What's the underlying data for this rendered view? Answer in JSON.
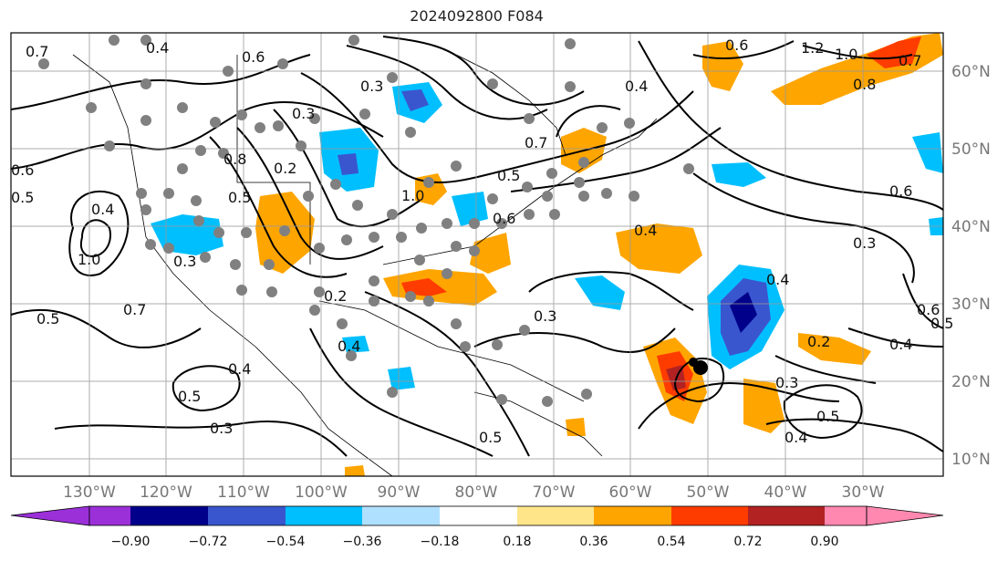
{
  "title": "2024092800 F084",
  "longitude_labels": [
    "130°W",
    "120°W",
    "110°W",
    "100°W",
    "90°W",
    "80°W",
    "70°W",
    "60°W",
    "50°W",
    "40°W",
    "30°W"
  ],
  "latitude_labels": [
    "60°N",
    "50°N",
    "40°N",
    "30°N",
    "20°N",
    "10°N"
  ],
  "colorbar": {
    "tick_labels": [
      "−0.90",
      "−0.72",
      "−0.54",
      "−0.36",
      "−0.18",
      "0.18",
      "0.36",
      "0.54",
      "0.72",
      "0.90"
    ],
    "colors": [
      "#9b30d9",
      "#00008b",
      "#3a56cf",
      "#00bfff",
      "#b0e0ff",
      "#ffffff",
      "#ffe58a",
      "#ffa500",
      "#ff3c00",
      "#b22222",
      "#ff88b0"
    ]
  },
  "contour_labels": [
    "0.7",
    "0.4",
    "0.6",
    "0.6",
    "0.5",
    "0.5",
    "0.4",
    "0.3",
    "0.2",
    "0.5",
    "1.0",
    "0.5",
    "0.7",
    "0.3",
    "0.8",
    "0.4",
    "1.0",
    "0.7",
    "0.5",
    "0.6",
    "0.4",
    "0.6",
    "1.2",
    "1.0",
    "0.7",
    "0.8",
    "0.4",
    "0.6",
    "0.3",
    "0.4",
    "0.3",
    "0.2",
    "0.4",
    "0.3",
    "0.4",
    "0.5",
    "0.6",
    "0.5",
    "0.4",
    "0.5",
    "0.3",
    "0.2",
    "0.3"
  ],
  "marker_color": "#000000"
}
